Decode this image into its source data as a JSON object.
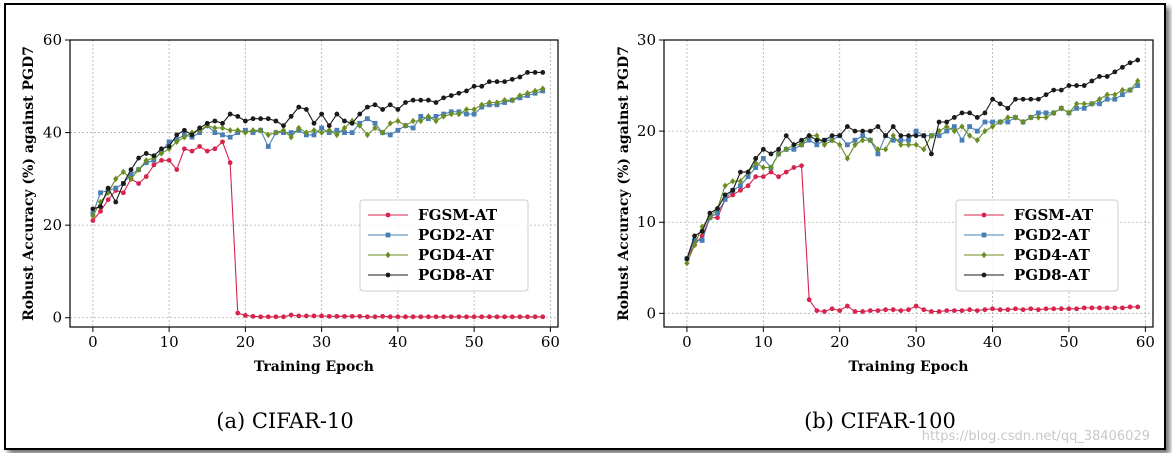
{
  "figure": {
    "watermark": "https://blog.csdn.net/qq_38406029"
  },
  "chart_data": [
    {
      "type": "line",
      "caption": "(a) CIFAR-10",
      "xlabel": "Training Epoch",
      "ylabel": "Robust Accuracy (%) against PGD7",
      "xlim": [
        -3,
        61
      ],
      "ylim": [
        -2,
        60
      ],
      "xticks": [
        0,
        10,
        20,
        30,
        40,
        50,
        60
      ],
      "yticks": [
        0,
        20,
        40,
        60
      ],
      "grid": true,
      "legend_position": "center-right",
      "series": [
        {
          "name": "FGSM-AT",
          "color": "#d6244e",
          "marker": "circle",
          "values": [
            21,
            23,
            25.5,
            27.5,
            27,
            30,
            29,
            30.5,
            33,
            34,
            34,
            32,
            36.5,
            36,
            37,
            36,
            36.5,
            38,
            33.5,
            1,
            0.5,
            0.3,
            0.2,
            0.2,
            0.2,
            0.2,
            0.6,
            0.4,
            0.4,
            0.4,
            0.4,
            0.3,
            0.3,
            0.3,
            0.3,
            0.3,
            0.2,
            0.2,
            0.3,
            0.2,
            0.2,
            0.2,
            0.2,
            0.2,
            0.2,
            0.2,
            0.2,
            0.2,
            0.2,
            0.2,
            0.2,
            0.2,
            0.2,
            0.2,
            0.2,
            0.2,
            0.2,
            0.2,
            0.2,
            0.2
          ]
        },
        {
          "name": "PGD2-AT",
          "color": "#4a7fb5",
          "marker": "square",
          "values": [
            22.5,
            27,
            27.5,
            28,
            29,
            31,
            32,
            33.5,
            34,
            36,
            38,
            38.5,
            39.5,
            39,
            40,
            41.5,
            40,
            39.5,
            39,
            40,
            40.5,
            40,
            40.5,
            37,
            40,
            40,
            40,
            40.5,
            39.5,
            39.5,
            41,
            40,
            40.5,
            40,
            40,
            42,
            43,
            42,
            40,
            39.5,
            40.5,
            41.5,
            41,
            43.5,
            43,
            43.5,
            44,
            44.5,
            44.5,
            44,
            44,
            45.5,
            46,
            46,
            46.5,
            47,
            47.5,
            48,
            48.5,
            49
          ]
        },
        {
          "name": "PGD4-AT",
          "color": "#6b8e23",
          "marker": "diamond",
          "values": [
            22,
            25,
            27,
            30,
            31.5,
            30,
            32,
            34,
            34.5,
            35.5,
            36.5,
            38,
            39,
            40,
            40.5,
            41.5,
            41,
            41,
            40.5,
            40.5,
            40,
            40.5,
            40.5,
            39.5,
            40,
            40.5,
            39,
            41,
            40,
            40.5,
            40,
            40.5,
            39.5,
            41,
            42.5,
            41.5,
            39.5,
            41,
            40,
            42,
            42.5,
            41.5,
            42.5,
            42.5,
            43.5,
            42.5,
            43.5,
            44,
            44,
            45,
            45,
            46,
            46.5,
            46.5,
            47,
            47,
            48,
            48.5,
            49,
            49.5
          ]
        },
        {
          "name": "PGD8-AT",
          "color": "#1a1a1a",
          "marker": "circle",
          "values": [
            23.5,
            24,
            28,
            25,
            29,
            32,
            34.5,
            35.5,
            35,
            36.5,
            37,
            39.5,
            40.5,
            39.5,
            41,
            42,
            42.5,
            42,
            44,
            43.5,
            42.5,
            43,
            43,
            43,
            42.5,
            41.5,
            43.5,
            45.5,
            45,
            42,
            44,
            41.5,
            44,
            42.5,
            42,
            44,
            45.5,
            46,
            45,
            46,
            45,
            46.5,
            47,
            47,
            47,
            46.5,
            47.5,
            48,
            48.5,
            49,
            50,
            50,
            51,
            51,
            51,
            51.5,
            52,
            53,
            53,
            53
          ]
        }
      ]
    },
    {
      "type": "line",
      "caption": "(b) CIFAR-100",
      "xlabel": "Training Epoch",
      "ylabel": "Robust Accuracy (%) against PGD7",
      "xlim": [
        -3,
        61
      ],
      "ylim": [
        -1.5,
        30
      ],
      "xticks": [
        0,
        10,
        20,
        30,
        40,
        50,
        60
      ],
      "yticks": [
        0,
        10,
        20,
        30
      ],
      "grid": true,
      "legend_position": "center-right",
      "series": [
        {
          "name": "FGSM-AT",
          "color": "#d6244e",
          "marker": "circle",
          "values": [
            6,
            7.5,
            8.5,
            10.5,
            10.5,
            12.5,
            13,
            13.5,
            14,
            15,
            15,
            15.5,
            15,
            15.5,
            16,
            16.2,
            1.5,
            0.3,
            0.2,
            0.5,
            0.3,
            0.8,
            0.2,
            0.2,
            0.3,
            0.3,
            0.4,
            0.4,
            0.3,
            0.4,
            0.8,
            0.4,
            0.2,
            0.2,
            0.3,
            0.3,
            0.3,
            0.4,
            0.3,
            0.4,
            0.5,
            0.4,
            0.4,
            0.5,
            0.4,
            0.5,
            0.4,
            0.5,
            0.5,
            0.5,
            0.5,
            0.5,
            0.6,
            0.6,
            0.6,
            0.6,
            0.6,
            0.6,
            0.7,
            0.7
          ]
        },
        {
          "name": "PGD2-AT",
          "color": "#4a7fb5",
          "marker": "square",
          "values": [
            6,
            8,
            8,
            10.5,
            11,
            12.5,
            13.5,
            14,
            15,
            16,
            17,
            16,
            17.5,
            18,
            18,
            18.5,
            19,
            18.5,
            19,
            19,
            19.5,
            18.5,
            19,
            19.5,
            19,
            17.5,
            19.5,
            19,
            19,
            19,
            20,
            19.5,
            19.5,
            19.5,
            20,
            20.5,
            19,
            20.5,
            20,
            21,
            21,
            21,
            21,
            21.5,
            21,
            21.5,
            22,
            22,
            22,
            22.5,
            22,
            22.5,
            22.5,
            23,
            23,
            23.5,
            23.5,
            24,
            24.5,
            25
          ]
        },
        {
          "name": "PGD4-AT",
          "color": "#6b8e23",
          "marker": "diamond",
          "values": [
            5.5,
            7.5,
            9.5,
            10.5,
            11.5,
            14,
            14.5,
            14.5,
            15.5,
            16.5,
            16,
            16,
            17.5,
            18,
            18.5,
            18.5,
            19.5,
            19.5,
            18.5,
            19,
            18.5,
            17,
            18.5,
            19,
            19,
            18,
            18,
            19.5,
            18.5,
            18.5,
            18.5,
            18,
            19.5,
            20,
            20.5,
            20,
            20.5,
            19.5,
            19,
            20,
            20.5,
            21,
            21.5,
            21.5,
            21,
            21.5,
            21.5,
            21.5,
            22,
            22.5,
            22,
            23,
            23,
            23,
            23.5,
            24,
            24,
            24.5,
            24.5,
            25.5
          ]
        },
        {
          "name": "PGD8-AT",
          "color": "#1a1a1a",
          "marker": "circle",
          "values": [
            6,
            8.5,
            9,
            11,
            11.5,
            13,
            13.5,
            15.5,
            15.5,
            17,
            18,
            17.5,
            18,
            19.5,
            18.5,
            19,
            19.5,
            19,
            19,
            19.5,
            19.5,
            20.5,
            20,
            20,
            20,
            20.5,
            19.5,
            20.5,
            19.5,
            19.5,
            19.5,
            19.5,
            17.5,
            21,
            21,
            21.5,
            22,
            22,
            21.5,
            22,
            23.5,
            23,
            22.5,
            23.5,
            23.5,
            23.5,
            23.5,
            24,
            24.5,
            24.5,
            25,
            25,
            25,
            25.5,
            26,
            26,
            26.5,
            27,
            27.5,
            27.8
          ]
        }
      ]
    }
  ]
}
